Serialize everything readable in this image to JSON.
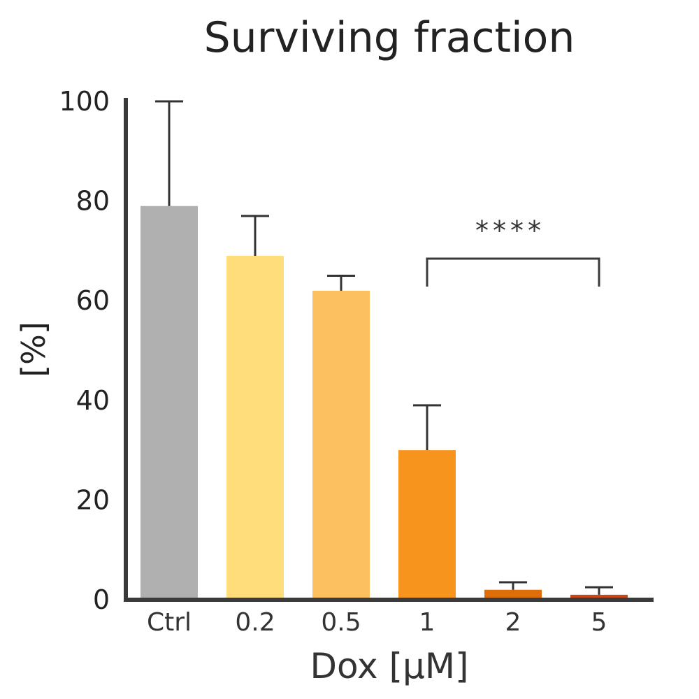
{
  "chart_data": {
    "type": "bar",
    "title": "Surviving fraction",
    "xlabel": "Dox [µM]",
    "ylabel": "[%]",
    "ylim": [
      0,
      100
    ],
    "yticks": [
      0,
      20,
      40,
      60,
      80,
      100
    ],
    "categories": [
      "Ctrl",
      "0.2",
      "0.5",
      "1",
      "2",
      "5"
    ],
    "values": [
      79,
      69,
      62,
      30,
      2,
      1
    ],
    "errors": [
      21,
      8,
      3,
      9,
      1.5,
      1.5
    ],
    "colors": [
      "#b0b0b0",
      "#ffdd7a",
      "#fdc05e",
      "#f7941d",
      "#de6e0a",
      "#c9461a"
    ],
    "annotations": [
      {
        "type": "significance-bracket",
        "from": "1",
        "to": "5",
        "label": "****"
      }
    ]
  }
}
